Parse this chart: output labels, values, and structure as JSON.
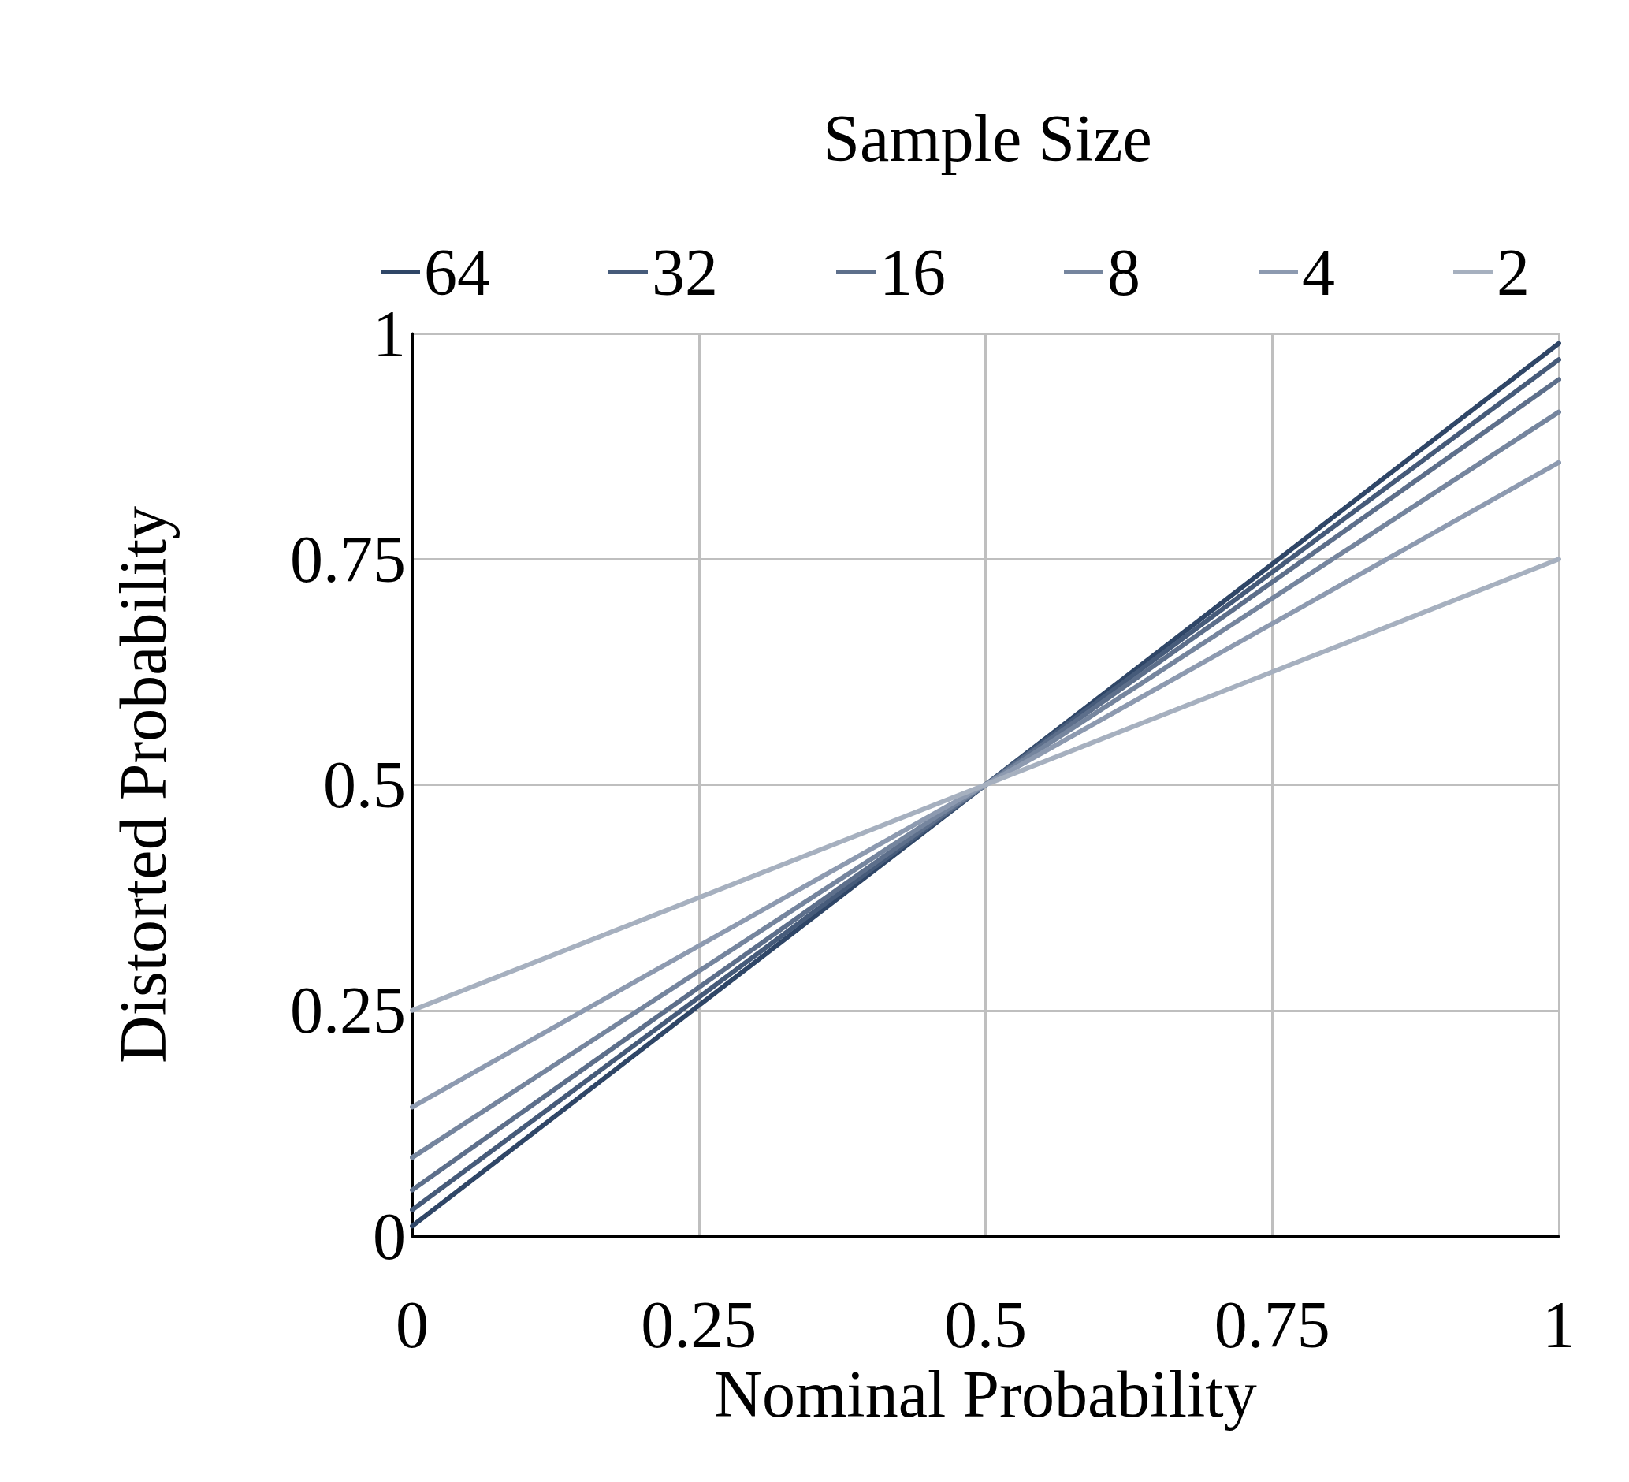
{
  "chart_data": {
    "type": "line",
    "legend_title": "Sample Size",
    "xlabel": "Nominal Probability",
    "ylabel": "Distorted Probability",
    "xlim": [
      0,
      1
    ],
    "ylim": [
      0,
      1
    ],
    "xticks": [
      0,
      0.25,
      0.5,
      0.75,
      1
    ],
    "yticks": [
      0,
      0.25,
      0.5,
      0.75,
      1
    ],
    "grid": true,
    "legend": "top",
    "marker": "none",
    "line_style": "solid",
    "x": [
      0,
      1
    ],
    "series": [
      {
        "name": "64",
        "color": "#2f4667",
        "values": [
          0.011,
          0.989
        ]
      },
      {
        "name": "32",
        "color": "#465b7a",
        "values": [
          0.029,
          0.971
        ]
      },
      {
        "name": "16",
        "color": "#5d6f8b",
        "values": [
          0.051,
          0.949
        ]
      },
      {
        "name": "8",
        "color": "#75859e",
        "values": [
          0.087,
          0.913
        ]
      },
      {
        "name": "4",
        "color": "#8d9ab0",
        "values": [
          0.143,
          0.857
        ]
      },
      {
        "name": "2",
        "color": "#a6b0bf",
        "values": [
          0.25,
          0.75
        ]
      }
    ]
  }
}
